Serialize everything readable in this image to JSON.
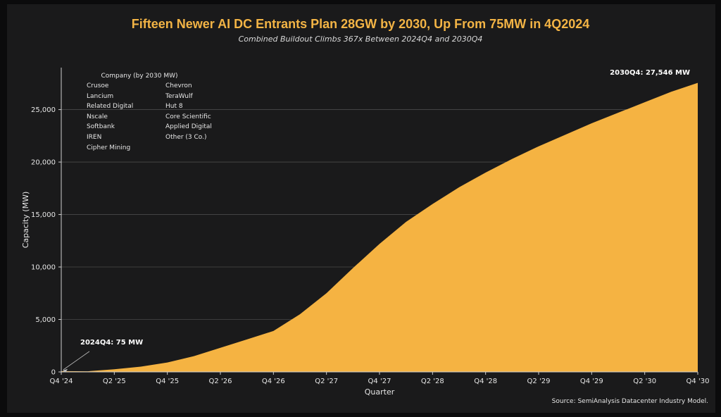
{
  "chart_data": {
    "type": "area",
    "title": "Fifteen Newer AI DC Entrants Plan 28GW by 2030, Up From 75MW in 4Q2024",
    "subtitle": "Combined Buildout Climbs 367x Between 2024Q4 and 2030Q4",
    "xlabel": "Quarter",
    "ylabel": "Capacity (MW)",
    "x": [
      "Q4 '24",
      "Q1 '25",
      "Q2 '25",
      "Q3 '25",
      "Q4 '25",
      "Q1 '26",
      "Q2 '26",
      "Q3 '26",
      "Q4 '26",
      "Q1 '27",
      "Q2 '27",
      "Q3 '27",
      "Q4 '27",
      "Q1 '28",
      "Q2 '28",
      "Q3 '28",
      "Q4 '28",
      "Q1 '29",
      "Q2 '29",
      "Q3 '29",
      "Q4 '29",
      "Q1 '30",
      "Q2 '30",
      "Q3 '30",
      "Q4 '30"
    ],
    "xtick_labels": [
      "Q4 '24",
      "Q2 '25",
      "Q4 '25",
      "Q2 '26",
      "Q4 '26",
      "Q2 '27",
      "Q4 '27",
      "Q2 '28",
      "Q4 '28",
      "Q2 '29",
      "Q4 '29",
      "Q2 '30",
      "Q4 '30"
    ],
    "values": [
      75,
      60,
      250,
      500,
      900,
      1500,
      2300,
      3100,
      3900,
      5500,
      7500,
      9900,
      12200,
      14300,
      16000,
      17600,
      19000,
      20300,
      21500,
      22600,
      23700,
      24700,
      25700,
      26700,
      27546
    ],
    "ylim": [
      0,
      29000
    ],
    "yticks": [
      0,
      5000,
      10000,
      15000,
      20000,
      25000
    ],
    "ytick_labels": [
      "0",
      "5,000",
      "10,000",
      "15,000",
      "20,000",
      "25,000"
    ],
    "grid": "horizontal",
    "color": "#f5b342",
    "annotations": [
      {
        "text": "2024Q4: 75 MW",
        "x": "Q4 '24",
        "y": 75
      },
      {
        "text": "2030Q4: 27,546 MW",
        "x": "Q4 '30",
        "y": 27546
      }
    ],
    "legend": {
      "title": "Company (by 2030 MW)",
      "placement": "top-left",
      "col1": [
        "Crusoe",
        "Lancium",
        "Related Digital",
        "Nscale",
        "Softbank",
        "IREN",
        "Cipher Mining"
      ],
      "col2": [
        "Chevron",
        "TeraWulf",
        "Hut 8",
        "Core Scientific",
        "Applied Digital",
        "Other (3 Co.)"
      ]
    }
  },
  "source": "Source: SemiAnalysis Datacenter Industry Model.",
  "colors": {
    "background": "#1a1a1b",
    "title": "#f3b445",
    "area": "#f5b342"
  }
}
